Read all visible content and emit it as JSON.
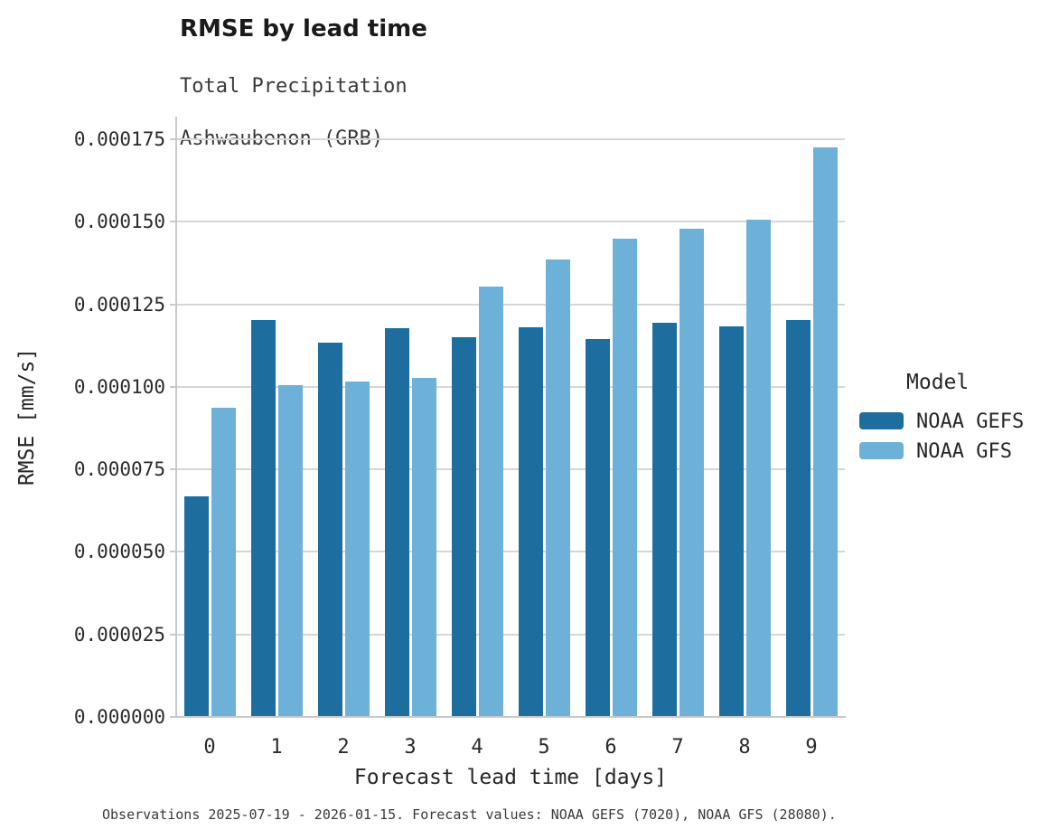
{
  "header": {
    "title": "RMSE by lead time",
    "subtitle_line1": "Total Precipitation",
    "subtitle_line2": "Ashwaubenon (GRB)"
  },
  "footer": {
    "caption": "Observations 2025-07-19 - 2026-01-15. Forecast values: NOAA GEFS (7020), NOAA GFS (28080)."
  },
  "legend": {
    "title": "Model",
    "items": [
      {
        "label": "NOAA GEFS",
        "color": "#1d6d9e"
      },
      {
        "label": "NOAA GFS",
        "color": "#6db1d9"
      }
    ]
  },
  "chart_data": {
    "type": "bar",
    "title": "RMSE by lead time",
    "subtitle": [
      "Total Precipitation",
      "Ashwaubenon (GRB)"
    ],
    "xlabel": "Forecast lead time [days]",
    "ylabel": "RMSE [mm/s]",
    "categories": [
      "0",
      "1",
      "2",
      "3",
      "4",
      "5",
      "6",
      "7",
      "8",
      "9"
    ],
    "series": [
      {
        "name": "NOAA GEFS",
        "color": "#1d6d9e",
        "values": [
          6.68e-05,
          0.0001201,
          0.0001134,
          0.0001178,
          0.0001151,
          0.0001181,
          0.0001145,
          0.0001195,
          0.0001184,
          0.0001201
        ]
      },
      {
        "name": "NOAA GFS",
        "color": "#6db1d9",
        "values": [
          9.36e-05,
          0.0001006,
          0.0001017,
          0.0001026,
          0.0001303,
          0.0001386,
          0.0001448,
          0.0001478,
          0.0001505,
          0.0001726
        ]
      }
    ],
    "ylim": [
      0,
      0.0001818
    ],
    "ytick_step": 2.5e-05,
    "ytick_labels": [
      "0.000000",
      "0.000025",
      "0.000050",
      "0.000075",
      "0.000100",
      "0.000125",
      "0.000150",
      "0.000175"
    ],
    "grid": "horizontal-major-only",
    "legend_position": "right",
    "legend_title": "Model"
  }
}
